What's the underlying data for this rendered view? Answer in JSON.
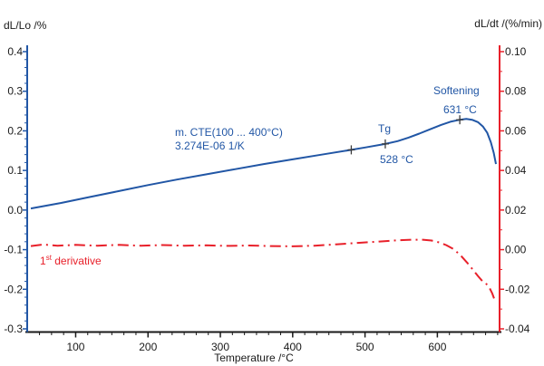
{
  "colors": {
    "blue_curve": "#2156a5",
    "red_curve": "#e8202a",
    "axis_text": "#1a1a1a",
    "marker": "#3c3c3c"
  },
  "chart_data": {
    "type": "line",
    "x_axis": {
      "label": "Temperature /°C",
      "tick_labels": [
        "100",
        "200",
        "300",
        "400",
        "500",
        "600"
      ],
      "range": [
        33,
        686
      ],
      "minor_step": 16.667,
      "major_step": 100
    },
    "left_axis": {
      "label": "dL/Lo /%",
      "tick_labels": [
        "0.4",
        "0.3",
        "0.2",
        "0.1",
        "0.0",
        "-0.1",
        "-0.2",
        "-0.3"
      ],
      "range": [
        -0.3,
        0.4
      ],
      "minor_step": 0.02,
      "major_step": 0.1,
      "color": "#2156a5"
    },
    "right_axis": {
      "label": "dL/dt /(%/min)",
      "tick_labels": [
        "0.10",
        "0.08",
        "0.06",
        "0.04",
        "0.02",
        "0.00",
        "-0.02",
        "-0.04"
      ],
      "range": [
        -0.04,
        0.1
      ],
      "minor_step": 0.01,
      "major_step": 0.02,
      "color": "#e8202a"
    },
    "series": [
      {
        "name": "dL/Lo",
        "axis": "left",
        "color": "#2156a5",
        "style": "solid",
        "points": [
          [
            38,
            0.004
          ],
          [
            80,
            0.018
          ],
          [
            120,
            0.033
          ],
          [
            160,
            0.048
          ],
          [
            200,
            0.063
          ],
          [
            240,
            0.077
          ],
          [
            280,
            0.09
          ],
          [
            320,
            0.103
          ],
          [
            360,
            0.116
          ],
          [
            400,
            0.128
          ],
          [
            440,
            0.14
          ],
          [
            481,
            0.152
          ],
          [
            500,
            0.158
          ],
          [
            528,
            0.167
          ],
          [
            545,
            0.174
          ],
          [
            560,
            0.183
          ],
          [
            575,
            0.193
          ],
          [
            590,
            0.204
          ],
          [
            605,
            0.215
          ],
          [
            618,
            0.223
          ],
          [
            631,
            0.228
          ],
          [
            640,
            0.23
          ],
          [
            648,
            0.228
          ],
          [
            656,
            0.222
          ],
          [
            663,
            0.211
          ],
          [
            669,
            0.195
          ],
          [
            674,
            0.171
          ],
          [
            678,
            0.144
          ],
          [
            681,
            0.116
          ]
        ]
      },
      {
        "name": "1st derivative",
        "axis": "right",
        "color": "#e8202a",
        "style": "dashdot",
        "points": [
          [
            38,
            0.0018
          ],
          [
            55,
            0.0026
          ],
          [
            75,
            0.002
          ],
          [
            100,
            0.0024
          ],
          [
            130,
            0.002
          ],
          [
            160,
            0.0024
          ],
          [
            190,
            0.002
          ],
          [
            220,
            0.0023
          ],
          [
            250,
            0.002
          ],
          [
            280,
            0.0022
          ],
          [
            310,
            0.0019
          ],
          [
            340,
            0.0021
          ],
          [
            370,
            0.0018
          ],
          [
            400,
            0.0017
          ],
          [
            430,
            0.002
          ],
          [
            460,
            0.0027
          ],
          [
            490,
            0.0034
          ],
          [
            520,
            0.0041
          ],
          [
            545,
            0.0047
          ],
          [
            565,
            0.005
          ],
          [
            580,
            0.005
          ],
          [
            592,
            0.0046
          ],
          [
            602,
            0.0037
          ],
          [
            612,
            0.0023
          ],
          [
            622,
            0.0004
          ],
          [
            632,
            -0.0028
          ],
          [
            641,
            -0.0065
          ],
          [
            649,
            -0.0101
          ],
          [
            656,
            -0.0133
          ],
          [
            662,
            -0.0158
          ],
          [
            667,
            -0.017
          ],
          [
            672,
            -0.0192
          ],
          [
            676,
            -0.0222
          ],
          [
            679,
            -0.0252
          ]
        ]
      }
    ],
    "markers": [
      {
        "t": 481,
        "v": 0.152
      },
      {
        "t": 528,
        "v": 0.167
      },
      {
        "t": 631,
        "v": 0.228
      }
    ],
    "annotations": {
      "cte_line1": "m. CTE(100 ... 400°C)",
      "cte_line2": "3.274E-06 1/K",
      "tg_label": "Tg",
      "tg_value": "528 °C",
      "softening_label": "Softening",
      "softening_value": "631 °C",
      "derivative_prefix": "1",
      "derivative_sup": "st",
      "derivative_rest": " derivative"
    }
  }
}
